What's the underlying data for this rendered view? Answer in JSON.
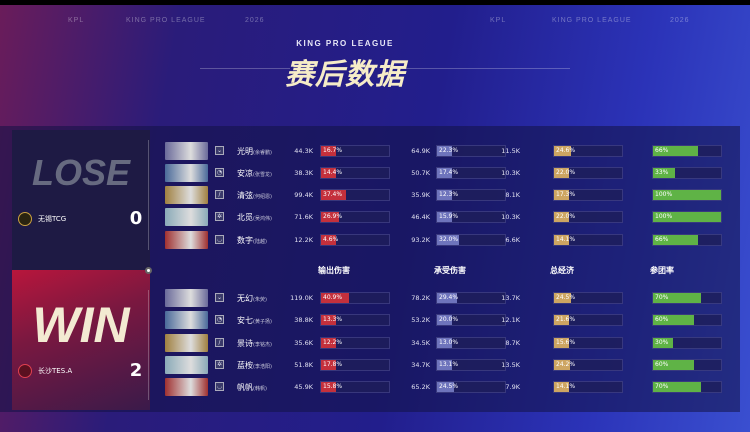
{
  "header": {
    "top_labels": [
      "KPL",
      "KING PRO LEAGUE",
      "2026",
      "KPL",
      "KING PRO LEAGUE",
      "2026"
    ],
    "subtitle": "KING PRO LEAGUE",
    "title": "赛后数据",
    "watermark": "KPL2026"
  },
  "colors": {
    "damage": "#c4303c",
    "taken": "#6e74bc",
    "economy": "#cda562",
    "participation": "#5fb346"
  },
  "columns": [
    "输出伤害",
    "承受伤害",
    "总经济",
    "参团率"
  ],
  "loser": {
    "result": "LOSE",
    "team": "无锡TCG",
    "score": "0",
    "players": [
      {
        "hero": "光明",
        "player": "(余睿鹏)",
        "role_icon": "jungle-icon",
        "damage": "44.3K",
        "damage_pct": 16.7,
        "taken": "64.9K",
        "taken_pct": 22.3,
        "economy": "11.5K",
        "economy_pct": 24.6,
        "participation": 66
      },
      {
        "hero": "安凉",
        "player": "(张雪龙)",
        "role_icon": "mid-icon",
        "damage": "38.3K",
        "damage_pct": 14.4,
        "taken": "50.7K",
        "taken_pct": 17.4,
        "economy": "10.3K",
        "economy_pct": 22.0,
        "participation": 33
      },
      {
        "hero": "清弦",
        "player": "(何绍恩)",
        "role_icon": "farm-icon",
        "damage": "99.4K",
        "damage_pct": 37.4,
        "taken": "35.9K",
        "taken_pct": 12.3,
        "economy": "8.1K",
        "economy_pct": 17.3,
        "participation": 100
      },
      {
        "hero": "北觅",
        "player": "(吴鸿伟)",
        "role_icon": "support-icon",
        "damage": "71.6K",
        "damage_pct": 26.9,
        "taken": "46.4K",
        "taken_pct": 15.9,
        "economy": "10.3K",
        "economy_pct": 22.0,
        "participation": 100
      },
      {
        "hero": "数字",
        "player": "(陆越)",
        "role_icon": "clash-icon",
        "damage": "12.2K",
        "damage_pct": 4.6,
        "taken": "93.2K",
        "taken_pct": 32.0,
        "economy": "6.6K",
        "economy_pct": 14.1,
        "participation": 66
      }
    ]
  },
  "winner": {
    "result": "WIN",
    "team": "长沙TES.A",
    "score": "2",
    "players": [
      {
        "hero": "无幻",
        "player": "(朱荧)",
        "role_icon": "jungle-icon",
        "damage": "119.0K",
        "damage_pct": 40.9,
        "taken": "78.2K",
        "taken_pct": 29.4,
        "economy": "13.7K",
        "economy_pct": 24.5,
        "participation": 70
      },
      {
        "hero": "安七",
        "player": "(黄子扬)",
        "role_icon": "mid-icon",
        "damage": "38.8K",
        "damage_pct": 13.3,
        "taken": "53.2K",
        "taken_pct": 20.0,
        "economy": "12.1K",
        "economy_pct": 21.6,
        "participation": 60
      },
      {
        "hero": "景诗",
        "player": "(李铭杰)",
        "role_icon": "farm-icon",
        "damage": "35.6K",
        "damage_pct": 12.2,
        "taken": "34.5K",
        "taken_pct": 13.0,
        "economy": "8.7K",
        "economy_pct": 15.6,
        "participation": 30
      },
      {
        "hero": "蓝桉",
        "player": "(李浩阳)",
        "role_icon": "support-icon",
        "damage": "51.8K",
        "damage_pct": 17.8,
        "taken": "34.7K",
        "taken_pct": 13.1,
        "economy": "13.5K",
        "economy_pct": 24.2,
        "participation": 60
      },
      {
        "hero": "帆帆",
        "player": "(韩帆)",
        "role_icon": "clash-icon",
        "damage": "45.9K",
        "damage_pct": 15.8,
        "taken": "65.2K",
        "taken_pct": 24.5,
        "economy": "7.9K",
        "economy_pct": 14.1,
        "participation": 70
      }
    ]
  }
}
